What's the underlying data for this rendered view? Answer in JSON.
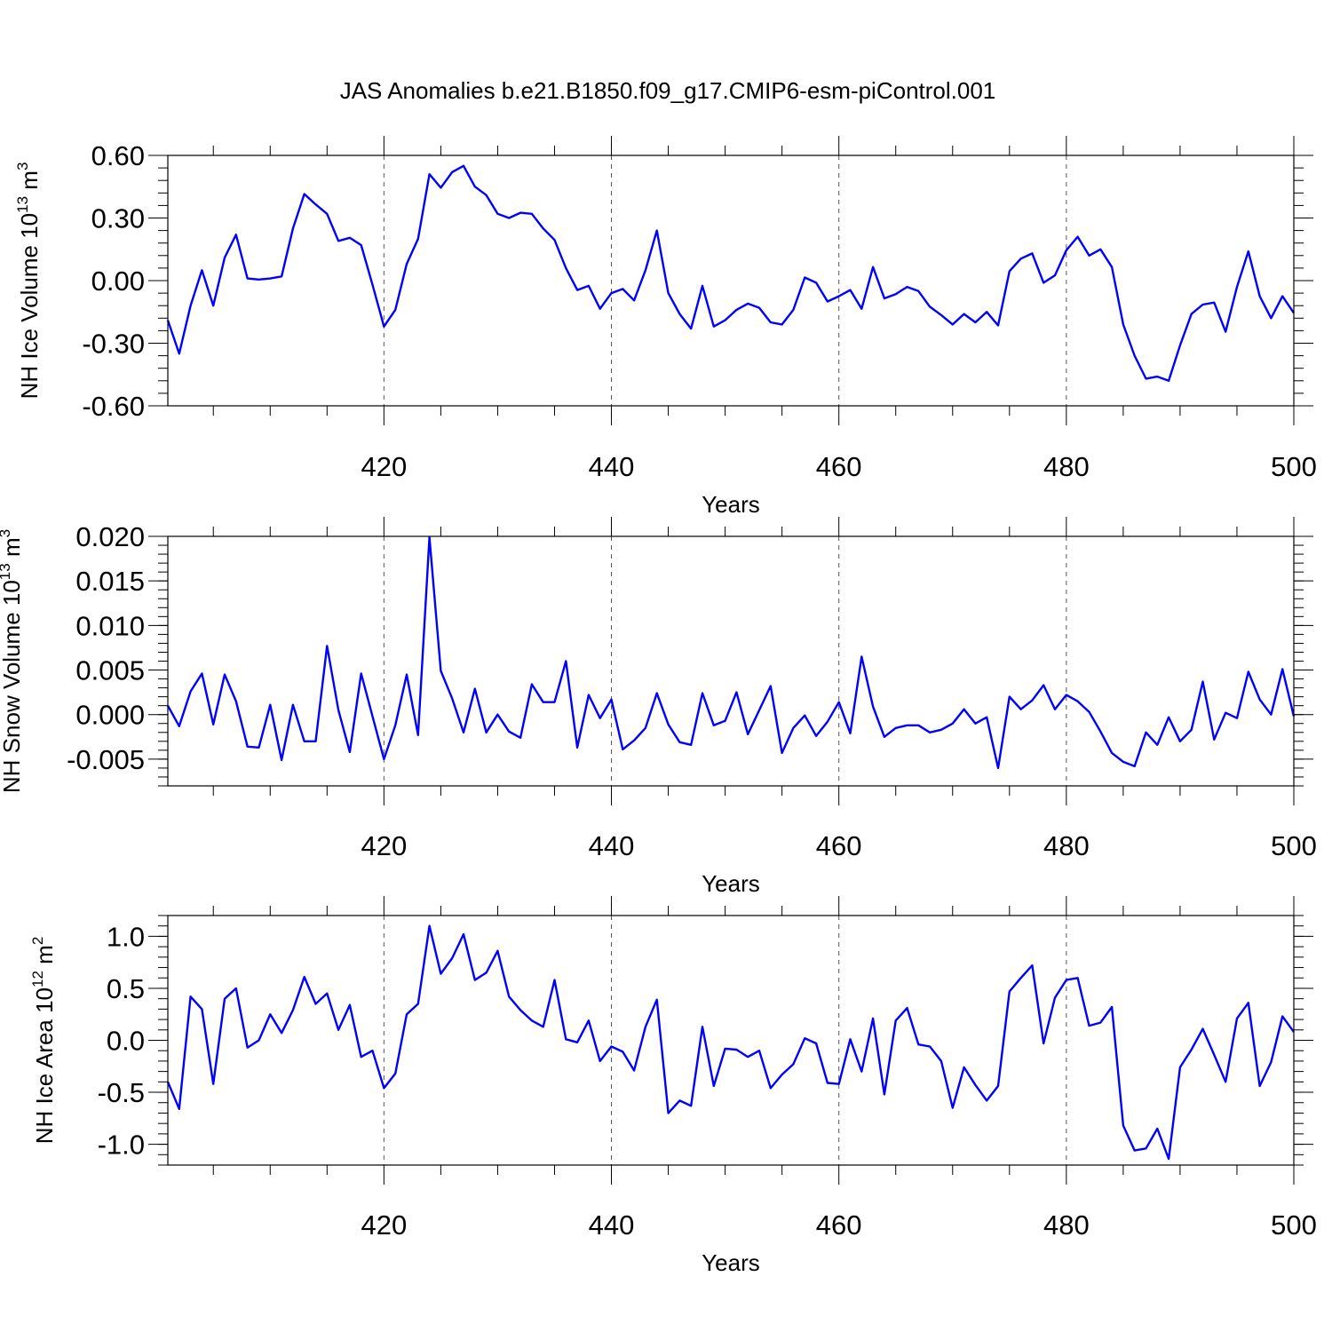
{
  "title": "JAS Anomalies b.e21.B1850.f09_g17.CMIP6-esm-piControl.001",
  "chart_data": [
    {
      "type": "line",
      "xlabel": "Years",
      "ylabel_main": "NH Ice Volume 10",
      "ylabel_exp": "13",
      "ylabel_unit": "m",
      "ylabel_unit_exp": "3",
      "xlim": [
        401,
        500
      ],
      "ylim": [
        -0.6,
        0.6
      ],
      "grid_x": [
        420,
        440,
        460,
        480
      ],
      "xticks": [
        420,
        440,
        460,
        480,
        500
      ],
      "yticks": [
        -0.6,
        -0.3,
        0.0,
        0.3,
        0.6
      ],
      "ytick_labels": [
        "-0.60",
        "-0.30",
        "0.00",
        "0.30",
        "0.60"
      ],
      "x_start": 401,
      "values": [
        -0.19,
        -0.35,
        -0.12,
        0.05,
        -0.12,
        0.11,
        0.22,
        0.01,
        0.005,
        0.01,
        0.02,
        0.25,
        0.415,
        0.365,
        0.32,
        0.19,
        0.205,
        0.17,
        -0.02,
        -0.22,
        -0.14,
        0.08,
        0.2,
        0.51,
        0.445,
        0.52,
        0.55,
        0.45,
        0.41,
        0.32,
        0.3,
        0.325,
        0.32,
        0.25,
        0.195,
        0.06,
        -0.045,
        -0.025,
        -0.135,
        -0.06,
        -0.04,
        -0.095,
        0.05,
        0.24,
        -0.06,
        -0.16,
        -0.23,
        -0.025,
        -0.22,
        -0.19,
        -0.14,
        -0.11,
        -0.13,
        -0.2,
        -0.21,
        -0.14,
        0.015,
        -0.01,
        -0.1,
        -0.075,
        -0.045,
        -0.135,
        0.065,
        -0.085,
        -0.065,
        -0.03,
        -0.05,
        -0.125,
        -0.165,
        -0.21,
        -0.16,
        -0.2,
        -0.15,
        -0.215,
        0.045,
        0.105,
        0.13,
        -0.01,
        0.025,
        0.145,
        0.21,
        0.12,
        0.15,
        0.065,
        -0.21,
        -0.36,
        -0.47,
        -0.46,
        -0.48,
        -0.31,
        -0.16,
        -0.115,
        -0.105,
        -0.245,
        -0.03,
        0.14,
        -0.075,
        -0.18,
        -0.075,
        -0.155
      ]
    },
    {
      "type": "line",
      "xlabel": "Years",
      "ylabel_main": "NH Snow Volume 10",
      "ylabel_exp": "13",
      "ylabel_unit": "m",
      "ylabel_unit_exp": "3",
      "xlim": [
        401,
        500
      ],
      "ylim": [
        -0.008,
        0.02
      ],
      "grid_x": [
        420,
        440,
        460,
        480
      ],
      "xticks": [
        420,
        440,
        460,
        480,
        500
      ],
      "yticks": [
        -0.005,
        0.0,
        0.005,
        0.01,
        0.015,
        0.02
      ],
      "ytick_labels": [
        "-0.005",
        "0.000",
        "0.005",
        "0.010",
        "0.015",
        "0.020"
      ],
      "x_start": 401,
      "values": [
        0.001,
        -0.0013,
        0.0026,
        0.0046,
        -0.0011,
        0.0045,
        0.0015,
        -0.0036,
        -0.0037,
        0.0011,
        -0.0051,
        0.0011,
        -0.003,
        -0.003,
        0.0077,
        0.0005,
        -0.0042,
        0.0046,
        -0.0002,
        -0.005,
        -0.0012,
        0.0045,
        -0.0023,
        0.0199,
        0.0049,
        0.0018,
        -0.002,
        0.0029,
        -0.002,
        0.0,
        -0.0019,
        -0.0026,
        0.0034,
        0.0014,
        0.0014,
        0.006,
        -0.0037,
        0.0022,
        -0.0004,
        0.0017,
        -0.0039,
        -0.0029,
        -0.0015,
        0.0024,
        -0.0011,
        -0.0031,
        -0.0034,
        0.0024,
        -0.0012,
        -0.0007,
        0.0025,
        -0.0022,
        0.0005,
        0.0032,
        -0.0043,
        -0.0015,
        -0.0001,
        -0.0024,
        -0.0008,
        0.0014,
        -0.0021,
        0.0065,
        0.0009,
        -0.0025,
        -0.0015,
        -0.0012,
        -0.0012,
        -0.002,
        -0.0017,
        -0.001,
        0.0006,
        -0.001,
        -0.0003,
        -0.006,
        0.002,
        0.0006,
        0.0016,
        0.0033,
        0.0006,
        0.0022,
        0.0015,
        0.0003,
        -0.0019,
        -0.0043,
        -0.0053,
        -0.0058,
        -0.002,
        -0.0034,
        -0.0003,
        -0.003,
        -0.0017,
        0.0037,
        -0.0028,
        0.0002,
        -0.0004,
        0.0048,
        0.0017,
        0.0,
        0.0051,
        -0.0002
      ]
    },
    {
      "type": "line",
      "xlabel": "Years",
      "ylabel_main": "NH Ice Area 10",
      "ylabel_exp": "12",
      "ylabel_unit": "m",
      "ylabel_unit_exp": "2",
      "xlim": [
        401,
        500
      ],
      "ylim": [
        -1.2,
        1.2
      ],
      "grid_x": [
        420,
        440,
        460,
        480
      ],
      "xticks": [
        420,
        440,
        460,
        480,
        500
      ],
      "yticks": [
        -1.0,
        -0.5,
        0.0,
        0.5,
        1.0
      ],
      "ytick_labels": [
        "-1.0",
        "-0.5",
        "0.0",
        "0.5",
        "1.0"
      ],
      "x_start": 401,
      "values": [
        -0.4,
        -0.66,
        0.42,
        0.3,
        -0.42,
        0.4,
        0.5,
        -0.07,
        0.0,
        0.25,
        0.07,
        0.29,
        0.61,
        0.35,
        0.45,
        0.1,
        0.34,
        -0.16,
        -0.1,
        -0.46,
        -0.32,
        0.25,
        0.35,
        1.1,
        0.64,
        0.79,
        1.02,
        0.58,
        0.65,
        0.86,
        0.42,
        0.29,
        0.19,
        0.13,
        0.58,
        0.01,
        -0.02,
        0.19,
        -0.2,
        -0.06,
        -0.11,
        -0.29,
        0.13,
        0.39,
        -0.7,
        -0.58,
        -0.63,
        0.13,
        -0.44,
        -0.08,
        -0.09,
        -0.16,
        -0.1,
        -0.46,
        -0.33,
        -0.23,
        0.02,
        -0.03,
        -0.41,
        -0.42,
        0.01,
        -0.3,
        0.21,
        -0.52,
        0.19,
        0.31,
        -0.04,
        -0.06,
        -0.2,
        -0.65,
        -0.26,
        -0.43,
        -0.58,
        -0.44,
        0.47,
        0.6,
        0.72,
        -0.03,
        0.41,
        0.58,
        0.6,
        0.14,
        0.17,
        0.32,
        -0.82,
        -1.06,
        -1.04,
        -0.85,
        -1.14,
        -0.26,
        -0.09,
        0.11,
        -0.14,
        -0.4,
        0.21,
        0.36,
        -0.44,
        -0.21,
        0.23,
        0.08
      ]
    }
  ]
}
